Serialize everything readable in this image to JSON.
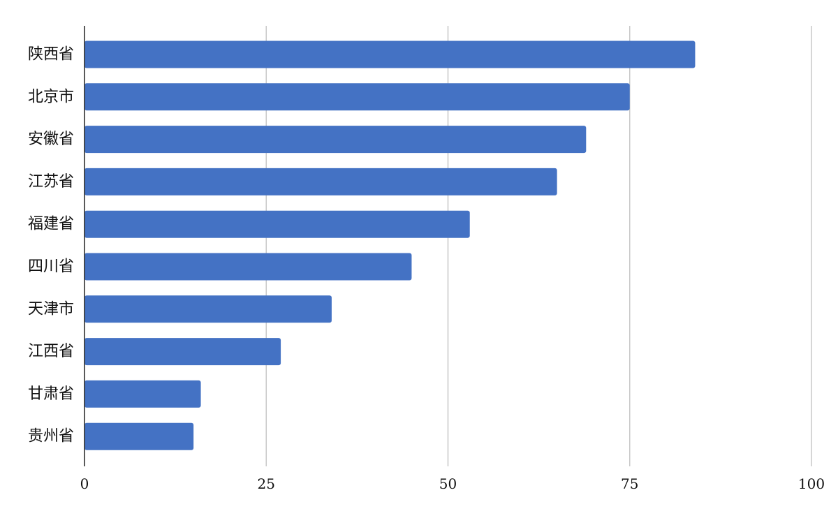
{
  "chart_data": {
    "type": "bar",
    "orientation": "horizontal",
    "categories": [
      "陕西省",
      "北京市",
      "安徽省",
      "江苏省",
      "福建省",
      "四川省",
      "天津市",
      "江西省",
      "甘肃省",
      "贵州省"
    ],
    "values": [
      84,
      75,
      69,
      65,
      53,
      45,
      34,
      27,
      16,
      15
    ],
    "xlim": [
      0,
      100
    ],
    "xticks": [
      0,
      25,
      50,
      75,
      100
    ],
    "grid": true,
    "bar_color": "#4472c4",
    "title": "",
    "xlabel": "",
    "ylabel": ""
  }
}
